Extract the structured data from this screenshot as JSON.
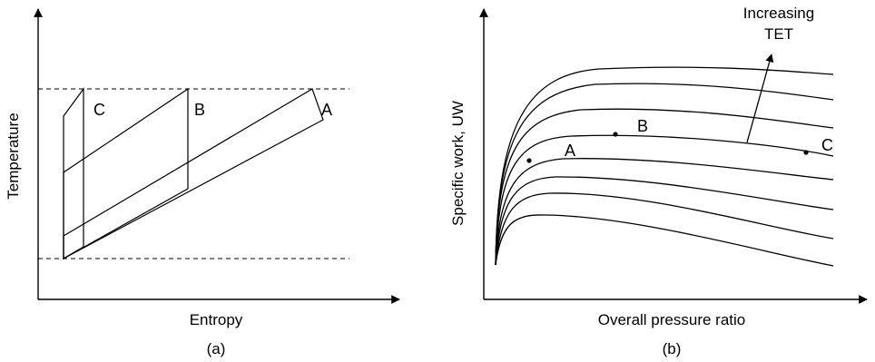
{
  "panel_a": {
    "caption": "(a)",
    "x_axis_label": "Entropy",
    "y_axis_label": "Temperature",
    "cycle_labels": {
      "a": "A",
      "b": "B",
      "c": "C"
    }
  },
  "panel_b": {
    "caption": "(b)",
    "x_axis_label": "Overall pressure ratio",
    "y_axis_label": "Specific work, UW",
    "annotation_line1": "Increasing",
    "annotation_line2": "TET",
    "point_labels": {
      "a": "A",
      "b": "B",
      "c": "C"
    }
  },
  "colors": {
    "ink": "#000000",
    "background": "#ffffff"
  }
}
